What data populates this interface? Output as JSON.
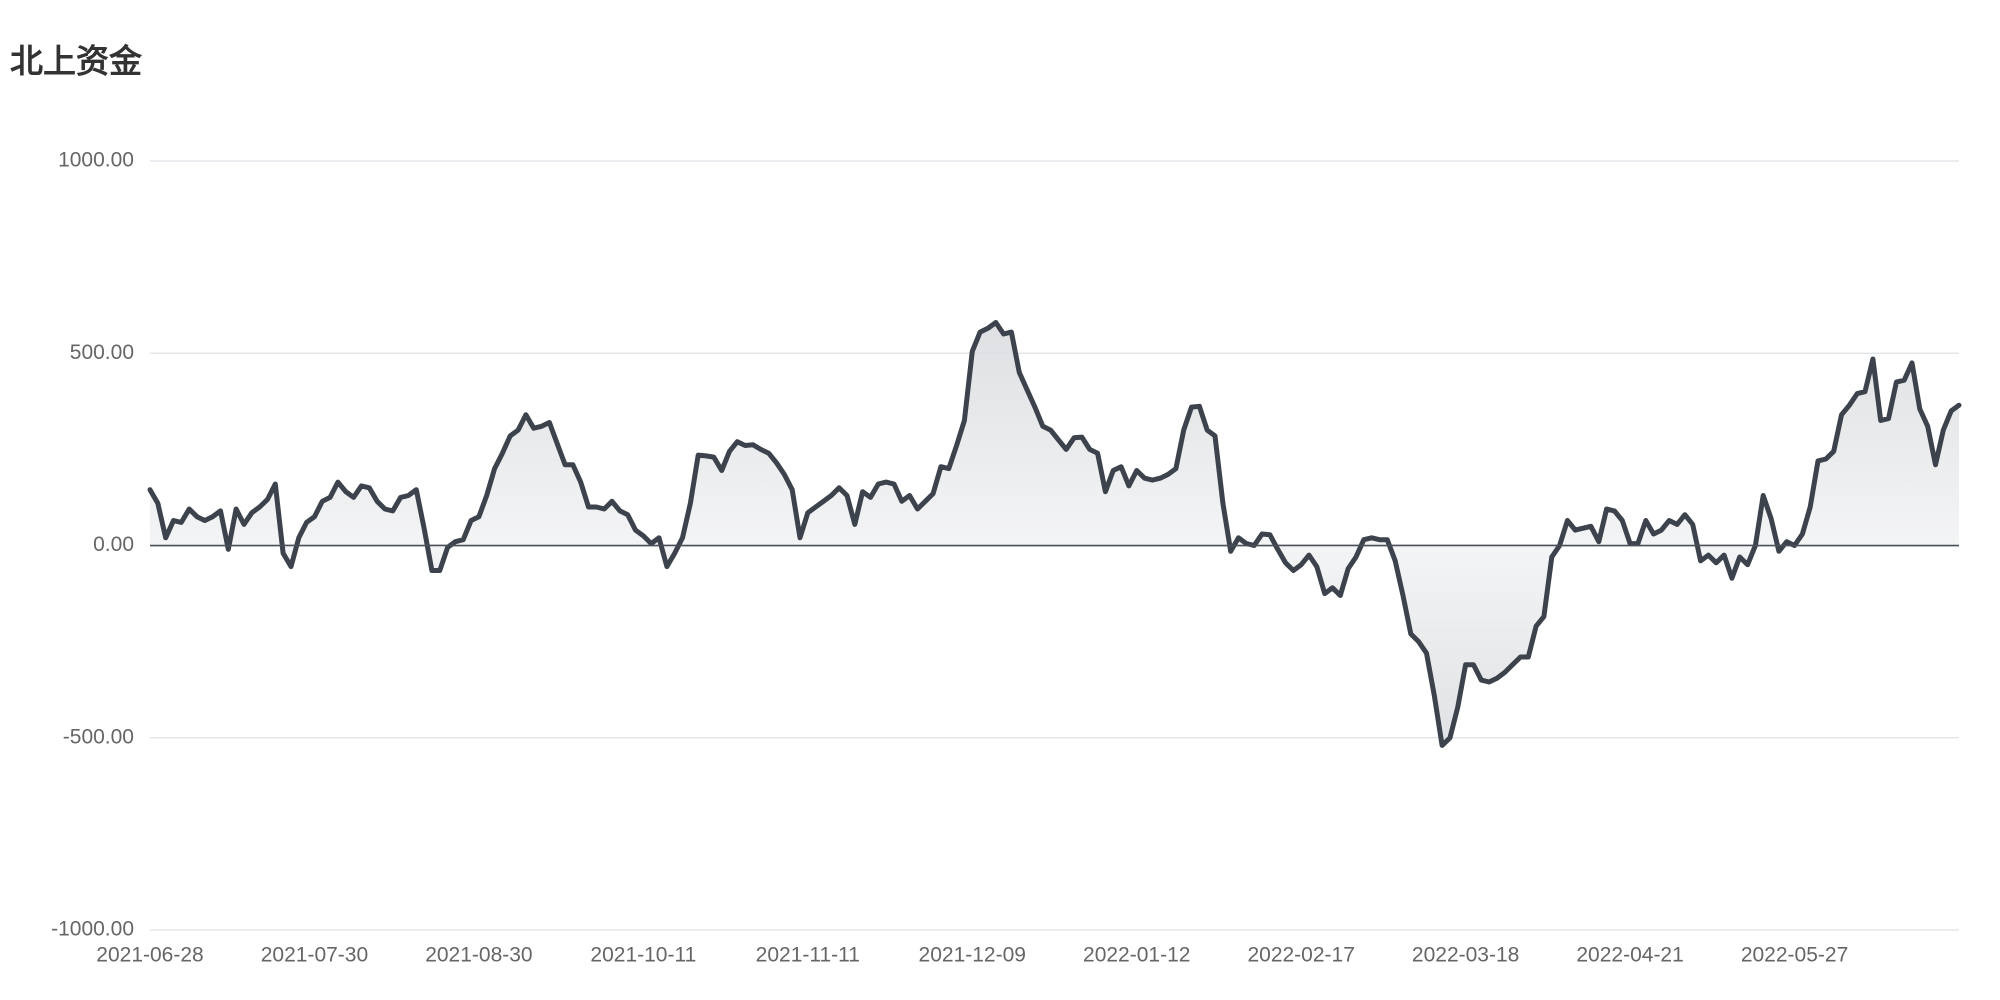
{
  "chart_data": {
    "type": "line",
    "title": "北上资金",
    "categories": [
      "2021-06-28",
      null,
      null,
      null,
      null,
      null,
      null,
      null,
      null,
      null,
      null,
      null,
      null,
      null,
      null,
      null,
      null,
      null,
      null,
      null,
      null,
      "2021-07-30",
      null,
      null,
      null,
      null,
      null,
      null,
      null,
      null,
      null,
      null,
      null,
      null,
      null,
      null,
      null,
      null,
      null,
      null,
      null,
      null,
      "2021-08-30",
      null,
      null,
      null,
      null,
      null,
      null,
      null,
      null,
      null,
      null,
      null,
      null,
      null,
      null,
      null,
      null,
      null,
      null,
      null,
      null,
      "2021-10-11",
      null,
      null,
      null,
      null,
      null,
      null,
      null,
      null,
      null,
      null,
      null,
      null,
      null,
      null,
      null,
      null,
      null,
      null,
      null,
      null,
      "2021-11-11",
      null,
      null,
      null,
      null,
      null,
      null,
      null,
      null,
      null,
      null,
      null,
      null,
      null,
      null,
      null,
      null,
      null,
      null,
      null,
      null,
      "2021-12-09",
      null,
      null,
      null,
      null,
      null,
      null,
      null,
      null,
      null,
      null,
      null,
      null,
      null,
      null,
      null,
      null,
      null,
      null,
      null,
      null,
      "2022-01-12",
      null,
      null,
      null,
      null,
      null,
      null,
      null,
      null,
      null,
      null,
      null,
      null,
      null,
      null,
      null,
      null,
      null,
      null,
      null,
      null,
      "2022-02-17",
      null,
      null,
      null,
      null,
      null,
      null,
      null,
      null,
      null,
      null,
      null,
      null,
      null,
      null,
      null,
      null,
      null,
      null,
      null,
      null,
      "2022-03-18",
      null,
      null,
      null,
      null,
      null,
      null,
      null,
      null,
      null,
      null,
      null,
      null,
      null,
      null,
      null,
      null,
      null,
      null,
      null,
      null,
      "2022-04-21",
      null,
      null,
      null,
      null,
      null,
      null,
      null,
      null,
      null,
      null,
      null,
      null,
      null,
      null,
      null,
      null,
      null,
      null,
      null,
      null,
      "2022-05-27",
      null,
      null,
      null,
      null,
      null,
      null,
      null,
      null,
      null,
      null,
      null,
      null,
      null,
      null,
      null,
      null,
      null,
      null,
      null,
      null,
      null
    ],
    "series": [
      {
        "color": "#3d434d",
        "values": [
          145,
          110,
          20,
          65,
          60,
          95,
          75,
          65,
          75,
          90,
          -10,
          95,
          55,
          85,
          100,
          120,
          160,
          -20,
          -55,
          20,
          60,
          75,
          115,
          125,
          165,
          140,
          125,
          155,
          150,
          115,
          95,
          90,
          125,
          130,
          145,
          45,
          -65,
          -65,
          -5,
          10,
          15,
          65,
          75,
          130,
          200,
          240,
          285,
          300,
          340,
          305,
          310,
          320,
          265,
          210,
          210,
          165,
          100,
          100,
          95,
          115,
          90,
          80,
          40,
          25,
          5,
          20,
          -55,
          -20,
          20,
          110,
          235,
          233,
          230,
          195,
          245,
          270,
          260,
          262,
          250,
          240,
          215,
          185,
          145,
          20,
          85,
          100,
          115,
          130,
          150,
          130,
          55,
          140,
          125,
          160,
          165,
          160,
          115,
          130,
          95,
          115,
          135,
          205,
          200,
          260,
          325,
          505,
          555,
          565,
          580,
          550,
          555,
          450,
          405,
          360,
          310,
          300,
          275,
          250,
          280,
          282,
          250,
          240,
          140,
          195,
          205,
          155,
          195,
          175,
          170,
          175,
          185,
          200,
          300,
          360,
          362,
          300,
          285,
          110,
          -15,
          20,
          5,
          0,
          30,
          28,
          -10,
          -45,
          -65,
          -50,
          -25,
          -55,
          -125,
          -110,
          -130,
          -60,
          -30,
          15,
          20,
          15,
          15,
          -40,
          -130,
          -230,
          -250,
          -280,
          -390,
          -520,
          -500,
          -420,
          -310,
          -310,
          -350,
          -355,
          -345,
          -330,
          -310,
          -290,
          -290,
          -210,
          -185,
          -30,
          0,
          65,
          40,
          45,
          50,
          10,
          95,
          90,
          65,
          5,
          5,
          65,
          30,
          40,
          65,
          55,
          80,
          55,
          -40,
          -25,
          -45,
          -25,
          -85,
          -30,
          -50,
          0,
          130,
          70,
          -15,
          10,
          0,
          30,
          100,
          220,
          225,
          245,
          340,
          365,
          395,
          400,
          485,
          325,
          330,
          425,
          430,
          475,
          355,
          310,
          210,
          300,
          350,
          365
        ]
      }
    ],
    "ylim": [
      -1000,
      1000
    ],
    "yticks": [
      {
        "value": -1000,
        "label": "-1000.00"
      },
      {
        "value": -500,
        "label": "-500.00"
      },
      {
        "value": 0,
        "label": "0.00"
      },
      {
        "value": 500,
        "label": "500.00"
      },
      {
        "value": 1000,
        "label": "1000.00"
      }
    ],
    "grid": true,
    "area": true
  }
}
